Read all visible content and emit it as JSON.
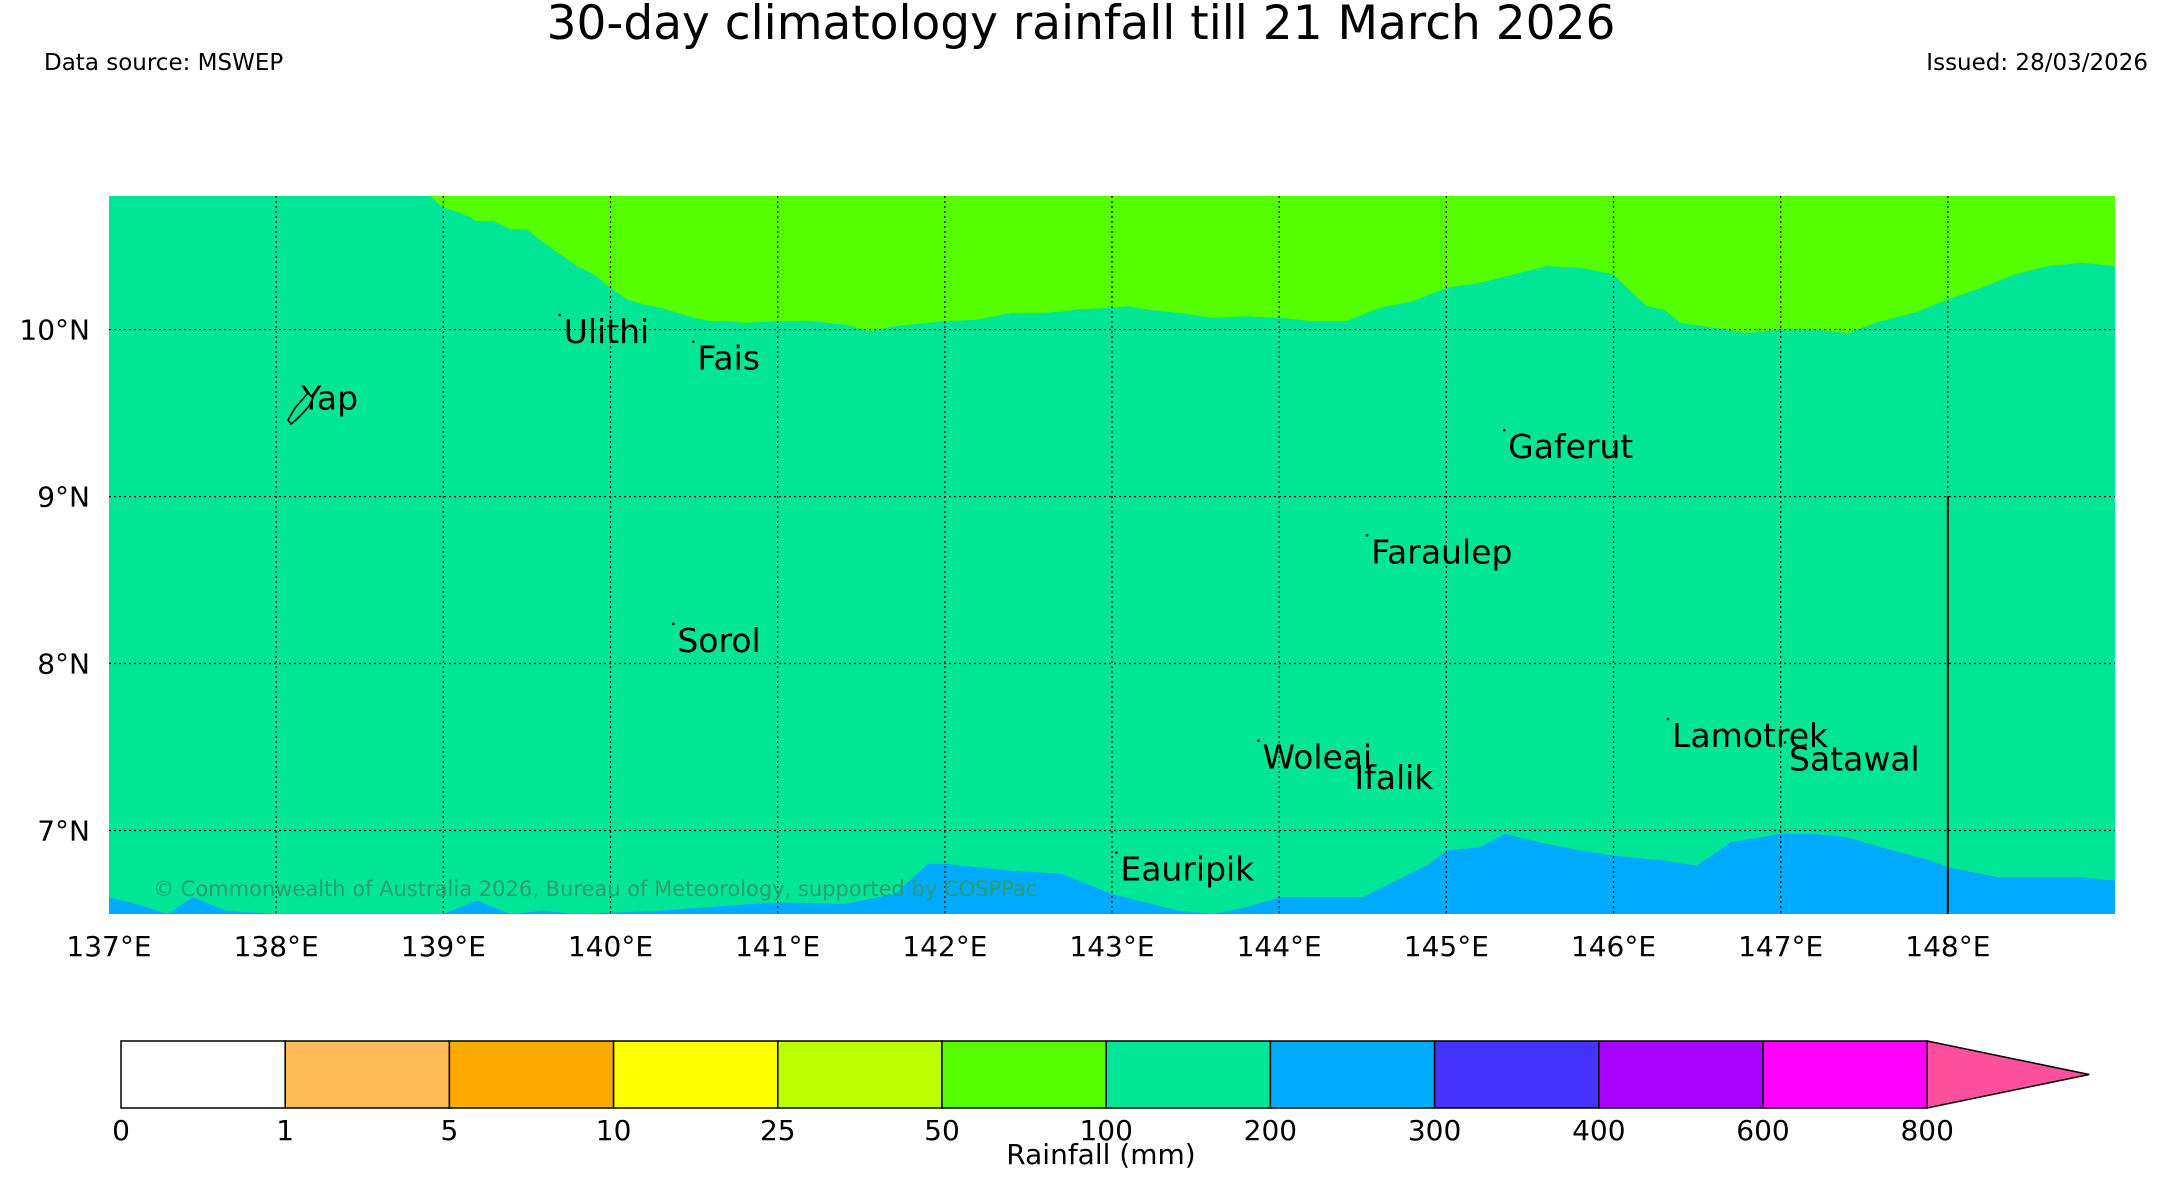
{
  "title": "30-day climatology rainfall till 21 March 2026",
  "data_source": "Data source: MSWEP",
  "issued": "Issued: 28/03/2026",
  "copyright": "© Commonwealth of Australia 2026, Bureau of Meteorology, supported by COSPPac",
  "map": {
    "lon_range": [
      137,
      149
    ],
    "lat_range": [
      6.5,
      10.8
    ],
    "lon_ticks": [
      137,
      138,
      139,
      140,
      141,
      142,
      143,
      144,
      145,
      146,
      147,
      148
    ],
    "lon_tick_labels": [
      "137°E",
      "138°E",
      "139°E",
      "140°E",
      "141°E",
      "142°E",
      "143°E",
      "144°E",
      "145°E",
      "146°E",
      "147°E",
      "148°E"
    ],
    "lat_ticks": [
      7,
      8,
      9,
      10
    ],
    "lat_tick_labels": [
      "7°N",
      "8°N",
      "9°N",
      "10°N"
    ],
    "gridlines": true,
    "zones": {
      "background_class": "100–200",
      "north_class": "50–100",
      "south_class": "200–300",
      "boundary_50_100": [
        [
          138.92,
          10.8
        ],
        [
          139.0,
          10.73
        ],
        [
          139.1,
          10.7
        ],
        [
          139.2,
          10.65
        ],
        [
          139.3,
          10.65
        ],
        [
          139.4,
          10.6
        ],
        [
          139.5,
          10.6
        ],
        [
          139.6,
          10.52
        ],
        [
          139.7,
          10.45
        ],
        [
          139.8,
          10.38
        ],
        [
          139.9,
          10.33
        ],
        [
          140.0,
          10.25
        ],
        [
          140.1,
          10.18
        ],
        [
          140.2,
          10.15
        ],
        [
          140.3,
          10.13
        ],
        [
          140.4,
          10.1
        ],
        [
          140.5,
          10.07
        ],
        [
          140.6,
          10.05
        ],
        [
          140.7,
          10.05
        ],
        [
          140.8,
          10.04
        ],
        [
          141.0,
          10.05
        ],
        [
          141.2,
          10.05
        ],
        [
          141.4,
          10.03
        ],
        [
          141.55,
          9.99
        ],
        [
          141.7,
          10.02
        ],
        [
          141.8,
          10.03
        ],
        [
          142.0,
          10.05
        ],
        [
          142.2,
          10.06
        ],
        [
          142.4,
          10.1
        ],
        [
          142.6,
          10.1
        ],
        [
          142.8,
          10.12
        ],
        [
          143.0,
          10.13
        ],
        [
          143.1,
          10.14
        ],
        [
          143.2,
          10.12
        ],
        [
          143.4,
          10.1
        ],
        [
          143.6,
          10.07
        ],
        [
          143.8,
          10.08
        ],
        [
          144.0,
          10.07
        ],
        [
          144.2,
          10.05
        ],
        [
          144.4,
          10.05
        ],
        [
          144.6,
          10.13
        ],
        [
          144.8,
          10.17
        ],
        [
          145.0,
          10.25
        ],
        [
          145.2,
          10.28
        ],
        [
          145.4,
          10.33
        ],
        [
          145.6,
          10.38
        ],
        [
          145.8,
          10.37
        ],
        [
          146.0,
          10.33
        ],
        [
          146.1,
          10.23
        ],
        [
          146.2,
          10.14
        ],
        [
          146.3,
          10.12
        ],
        [
          146.4,
          10.04
        ],
        [
          146.6,
          10.01
        ],
        [
          146.8,
          9.98
        ],
        [
          147.0,
          10.0
        ],
        [
          147.2,
          10.0
        ],
        [
          147.4,
          9.98
        ],
        [
          147.6,
          10.05
        ],
        [
          147.8,
          10.1
        ],
        [
          148.0,
          10.18
        ],
        [
          148.2,
          10.25
        ],
        [
          148.4,
          10.33
        ],
        [
          148.6,
          10.38
        ],
        [
          148.8,
          10.4
        ],
        [
          149.0,
          10.38
        ]
      ],
      "boundary_200_300": [
        [
          137.0,
          6.6
        ],
        [
          137.2,
          6.55
        ],
        [
          137.35,
          6.5
        ],
        [
          137.5,
          6.6
        ],
        [
          137.7,
          6.52
        ],
        [
          138.0,
          6.5
        ],
        [
          139.0,
          6.5
        ],
        [
          139.2,
          6.58
        ],
        [
          139.4,
          6.5
        ],
        [
          139.6,
          6.52
        ],
        [
          139.8,
          6.5
        ],
        [
          140.3,
          6.52
        ],
        [
          140.7,
          6.55
        ],
        [
          141.0,
          6.57
        ],
        [
          141.4,
          6.56
        ],
        [
          141.7,
          6.62
        ],
        [
          141.9,
          6.8
        ],
        [
          142.0,
          6.8
        ],
        [
          142.2,
          6.78
        ],
        [
          142.4,
          6.76
        ],
        [
          142.7,
          6.74
        ],
        [
          143.0,
          6.62
        ],
        [
          143.4,
          6.52
        ],
        [
          143.6,
          6.5
        ],
        [
          143.8,
          6.54
        ],
        [
          144.0,
          6.6
        ],
        [
          144.2,
          6.6
        ],
        [
          144.5,
          6.6
        ],
        [
          144.7,
          6.7
        ],
        [
          144.9,
          6.8
        ],
        [
          145.0,
          6.88
        ],
        [
          145.2,
          6.9
        ],
        [
          145.35,
          6.98
        ],
        [
          145.6,
          6.92
        ],
        [
          145.8,
          6.88
        ],
        [
          146.0,
          6.85
        ],
        [
          146.3,
          6.82
        ],
        [
          146.5,
          6.79
        ],
        [
          146.7,
          6.93
        ],
        [
          147.0,
          6.98
        ],
        [
          147.2,
          6.98
        ],
        [
          147.4,
          6.96
        ],
        [
          147.6,
          6.9
        ],
        [
          147.9,
          6.82
        ],
        [
          148.0,
          6.78
        ],
        [
          148.3,
          6.72
        ],
        [
          148.5,
          6.72
        ],
        [
          148.8,
          6.72
        ],
        [
          149.0,
          6.7
        ]
      ],
      "vertical_line_lon": 148.0,
      "vertical_line_lat_range": [
        6.5,
        9.0
      ]
    },
    "places": [
      {
        "name": "Yap",
        "lon": 138.15,
        "lat": 9.52
      },
      {
        "name": "Ulithi",
        "lon": 139.72,
        "lat": 9.92
      },
      {
        "name": "Fais",
        "lon": 140.52,
        "lat": 9.76
      },
      {
        "name": "Gaferut",
        "lon": 145.37,
        "lat": 9.23
      },
      {
        "name": "Faraulep",
        "lon": 144.55,
        "lat": 8.6
      },
      {
        "name": "Sorol",
        "lon": 140.4,
        "lat": 8.07
      },
      {
        "name": "Woleai",
        "lon": 143.9,
        "lat": 7.37
      },
      {
        "name": "Ifalik",
        "lon": 144.45,
        "lat": 7.25
      },
      {
        "name": "Lamotrek",
        "lon": 146.35,
        "lat": 7.5
      },
      {
        "name": "Satawal",
        "lon": 147.05,
        "lat": 7.36
      },
      {
        "name": "Eauripik",
        "lon": 143.05,
        "lat": 6.7
      }
    ]
  },
  "colorbar": {
    "label": "Rainfall (mm)",
    "ticks": [
      "0",
      "1",
      "5",
      "10",
      "25",
      "50",
      "100",
      "200",
      "300",
      "400",
      "600",
      "800"
    ],
    "colors": [
      "#ffffff",
      "#ffbb55",
      "#ffaa00",
      "#ffff00",
      "#bbff00",
      "#55ff00",
      "#00e696",
      "#00aaff",
      "#4433ff",
      "#aa00ff",
      "#ff00ff"
    ],
    "extend_color": "#ff4f9f"
  }
}
